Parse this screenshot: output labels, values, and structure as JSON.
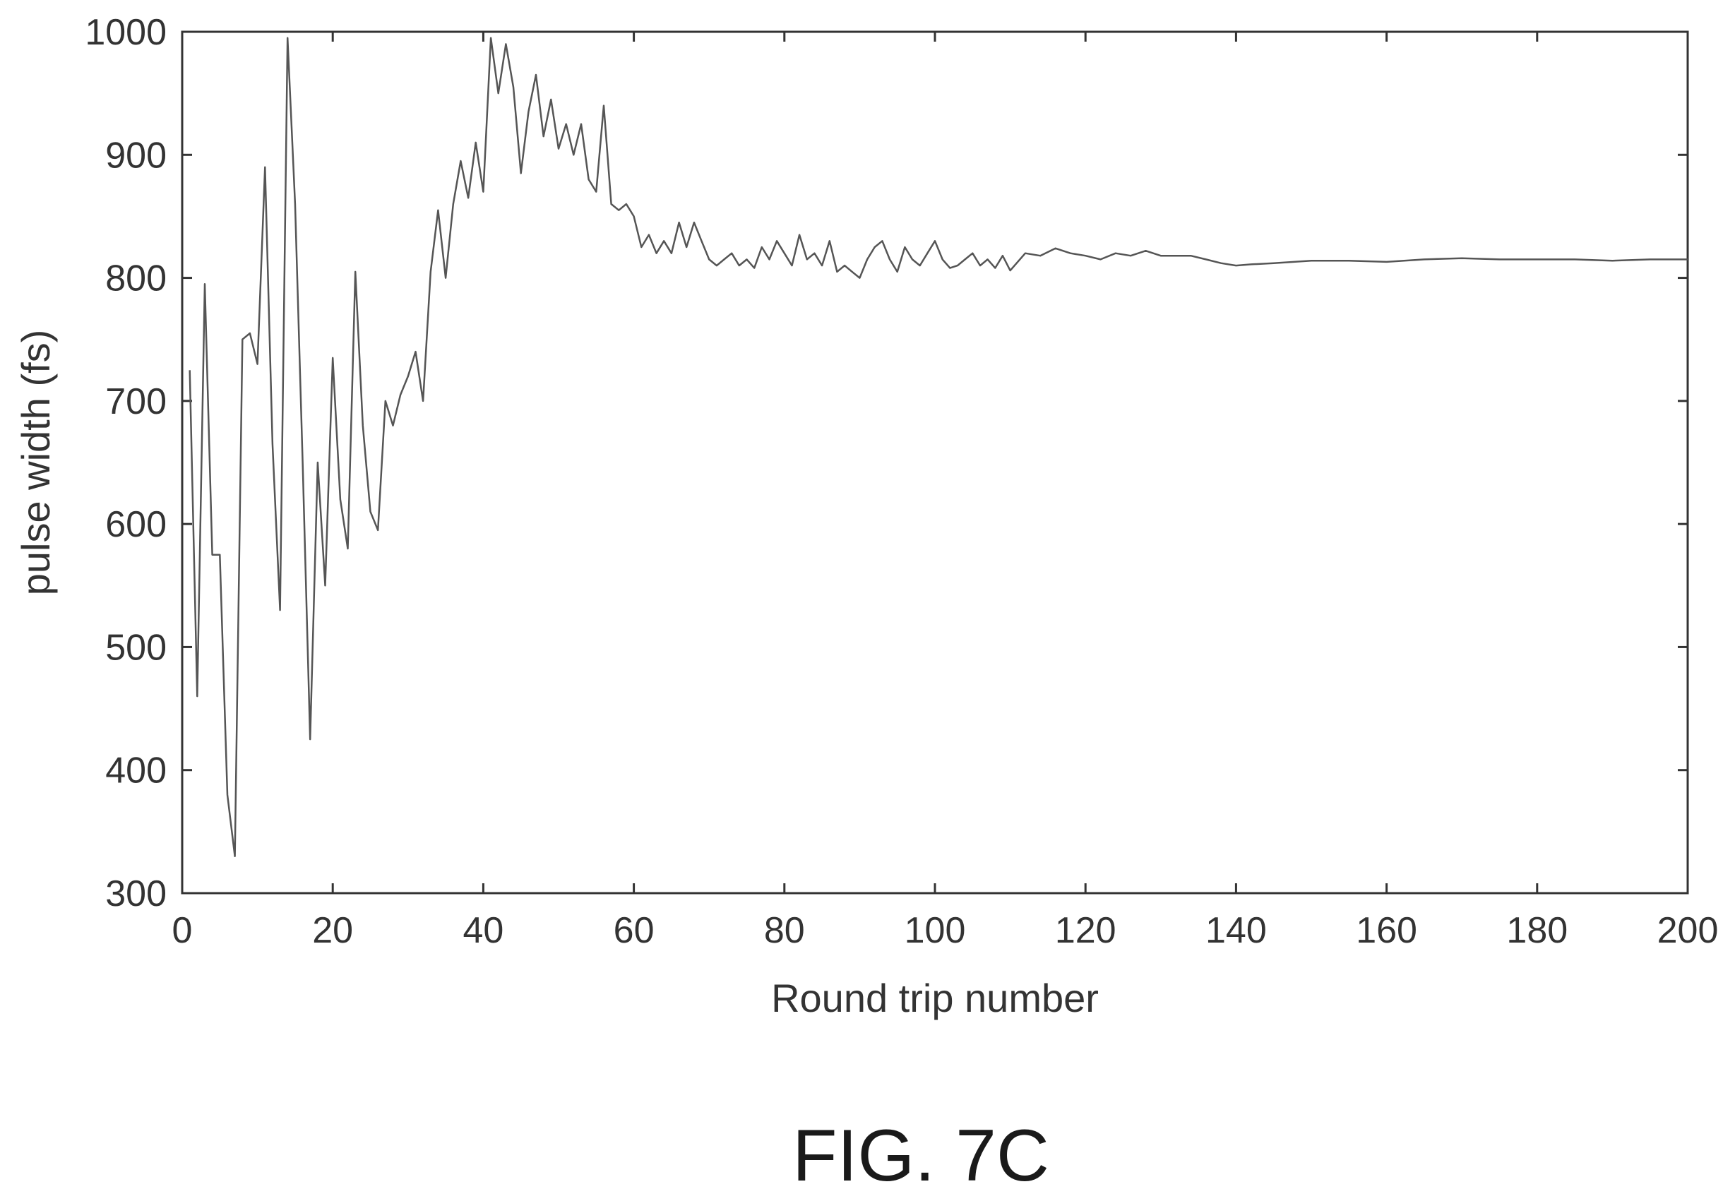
{
  "chart_data": {
    "type": "line",
    "title": "",
    "xlabel": "Round trip number",
    "ylabel": "pulse width (fs)",
    "xlim": [
      0,
      200
    ],
    "ylim": [
      300,
      1000
    ],
    "xticks": [
      0,
      20,
      40,
      60,
      80,
      100,
      120,
      140,
      160,
      180,
      200
    ],
    "yticks": [
      300,
      400,
      500,
      600,
      700,
      800,
      900,
      1000
    ],
    "grid": false,
    "line_color": "#555555",
    "series": [
      {
        "x": [
          1,
          2,
          3,
          4,
          5,
          6,
          7,
          8,
          9,
          10,
          11,
          12,
          13,
          14,
          15,
          16,
          17,
          18,
          19,
          20,
          21,
          22,
          23,
          24,
          25,
          26,
          27,
          28,
          29,
          30,
          31,
          32,
          33,
          34,
          35,
          36,
          37,
          38,
          39,
          40,
          41,
          42,
          43,
          44,
          45,
          46,
          47,
          48,
          49,
          50,
          51,
          52,
          53,
          54,
          55,
          56,
          57,
          58,
          59,
          60,
          61,
          62,
          63,
          64,
          65,
          66,
          67,
          68,
          69,
          70,
          71,
          72,
          73,
          74,
          75,
          76,
          77,
          78,
          79,
          80,
          81,
          82,
          83,
          84,
          85,
          86,
          87,
          88,
          89,
          90,
          91,
          92,
          93,
          94,
          95,
          96,
          97,
          98,
          99,
          100,
          101,
          102,
          103,
          104,
          105,
          106,
          107,
          108,
          109,
          110,
          112,
          114,
          116,
          118,
          120,
          122,
          124,
          126,
          128,
          130,
          132,
          134,
          136,
          138,
          140,
          142,
          145,
          150,
          155,
          160,
          165,
          170,
          175,
          180,
          185,
          190,
          195,
          200
        ],
        "values": [
          725,
          460,
          795,
          575,
          575,
          380,
          330,
          750,
          755,
          730,
          890,
          665,
          530,
          995,
          860,
          650,
          425,
          650,
          550,
          735,
          620,
          580,
          805,
          680,
          610,
          595,
          700,
          680,
          705,
          720,
          740,
          700,
          805,
          855,
          800,
          860,
          895,
          865,
          910,
          870,
          995,
          950,
          990,
          955,
          885,
          935,
          965,
          915,
          945,
          905,
          925,
          900,
          925,
          880,
          870,
          940,
          860,
          855,
          860,
          850,
          825,
          835,
          820,
          830,
          820,
          845,
          825,
          845,
          830,
          815,
          810,
          815,
          820,
          810,
          815,
          808,
          825,
          815,
          830,
          820,
          810,
          835,
          815,
          820,
          810,
          830,
          805,
          810,
          805,
          800,
          815,
          825,
          830,
          815,
          805,
          825,
          815,
          810,
          820,
          830,
          815,
          808,
          810,
          815,
          820,
          810,
          815,
          808,
          818,
          806,
          820,
          818,
          824,
          820,
          818,
          815,
          820,
          818,
          822,
          818,
          818,
          818,
          815,
          812,
          810,
          811,
          812,
          814,
          814,
          813,
          815,
          816,
          815,
          815,
          815,
          814,
          815,
          815
        ]
      }
    ]
  },
  "figure": {
    "caption": "FIG. 7C"
  }
}
